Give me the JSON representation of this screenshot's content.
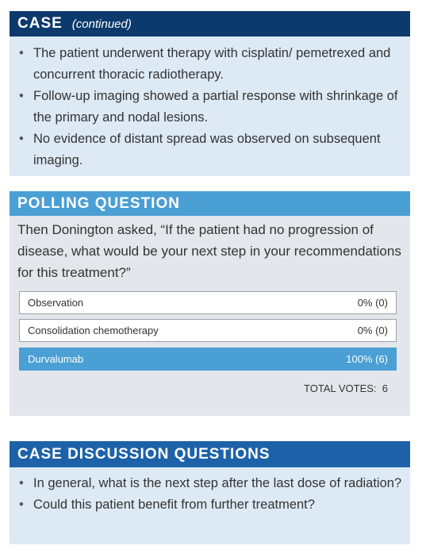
{
  "case": {
    "title": "CASE",
    "subtitle": "(continued)",
    "bullets": [
      "The patient underwent therapy with cisplatin/ pemetrexed and concurrent thoracic radiotherapy.",
      "Follow-up imaging showed a partial response with shrinkage of the primary and nodal lesions.",
      "No evidence of distant spread was observed on subsequent imaging."
    ]
  },
  "poll": {
    "title": "POLLING QUESTION",
    "question": "Then Donington asked, “If the patient had no progression of disease, what would be your next step in your recommendations for this treatment?”",
    "options": [
      {
        "label": "Observation",
        "result": "0% (0)"
      },
      {
        "label": "Consolidation chemotherapy",
        "result": "0% (0)"
      },
      {
        "label": "Durvalumab",
        "result": "100% (6)"
      }
    ],
    "total_label": "TOTAL VOTES:",
    "total": 6
  },
  "discussion": {
    "title": "CASE DISCUSSION QUESTIONS",
    "bullets": [
      "In general, what is the next step after the last dose of radiation?",
      "Could this patient benefit from further treatment?"
    ]
  }
}
